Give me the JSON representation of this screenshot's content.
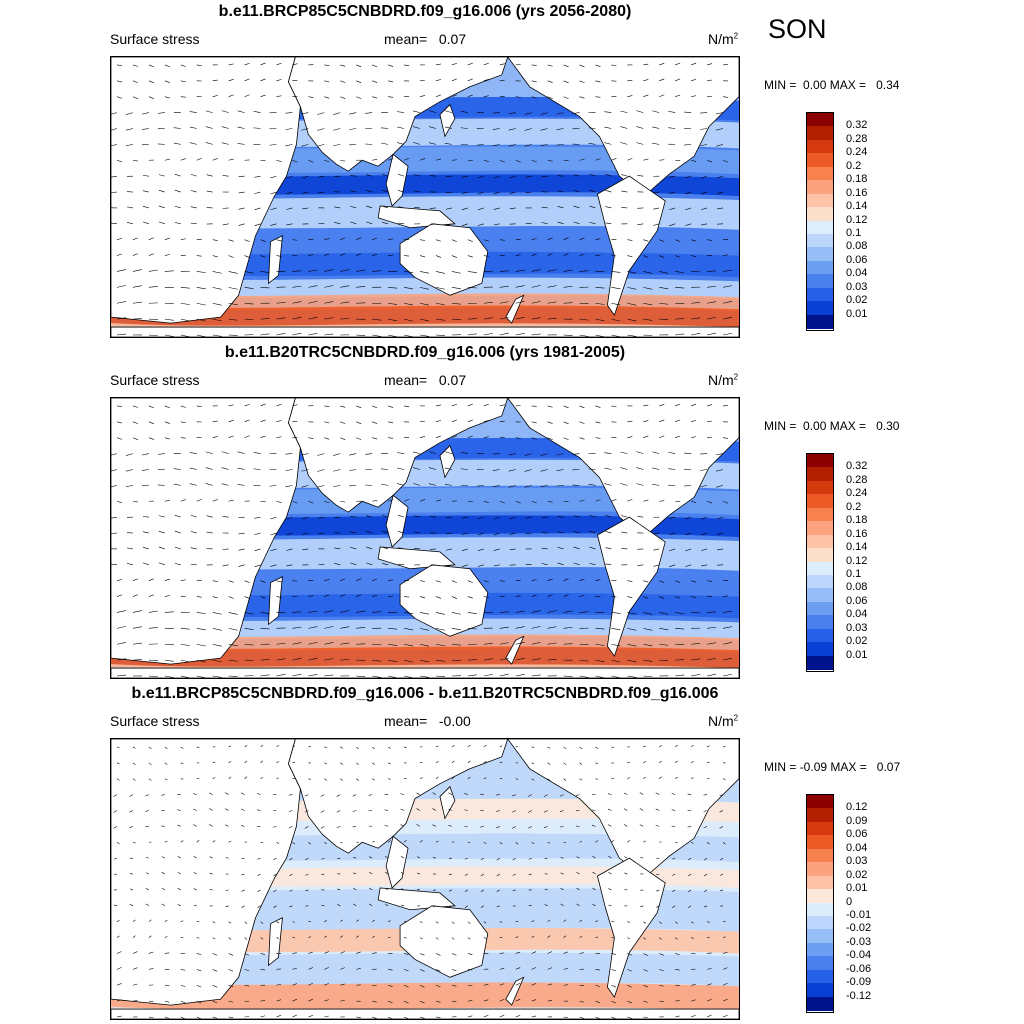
{
  "season": "SON",
  "panels": [
    {
      "title": "b.e11.BRCP85C5CNBDRD.f09_g16.006 (yrs 2056-2080)",
      "variable": "Surface stress",
      "mean_label": "mean=",
      "mean_value": "0.07",
      "units": "N/m",
      "units_exp": "2",
      "min_label": "MIN =",
      "min_value": "0.00",
      "max_label": "MAX =",
      "max_value": "0.34",
      "colorbar_levels": [
        "0.32",
        "0.28",
        "0.24",
        "0.2",
        "0.18",
        "0.16",
        "0.14",
        "0.12",
        "0.1",
        "0.08",
        "0.06",
        "0.04",
        "0.03",
        "0.02",
        "0.01"
      ],
      "colorbar_colors": [
        "#8b0000",
        "#b22000",
        "#d43a0d",
        "#ee5a25",
        "#f7824d",
        "#fba37e",
        "#fdc3a6",
        "#fde0cc",
        "#ddeefc",
        "#bcd7fb",
        "#97bdf7",
        "#6c9ff2",
        "#4a80ee",
        "#2660e8",
        "#0a3fd4",
        "#00138a"
      ]
    },
    {
      "title": "b.e11.B20TRC5CNBDRD.f09_g16.006 (yrs 1981-2005)",
      "variable": "Surface stress",
      "mean_label": "mean=",
      "mean_value": "0.07",
      "units": "N/m",
      "units_exp": "2",
      "min_label": "MIN =",
      "min_value": "0.00",
      "max_label": "MAX =",
      "max_value": "0.30",
      "colorbar_levels": [
        "0.32",
        "0.28",
        "0.24",
        "0.2",
        "0.18",
        "0.16",
        "0.14",
        "0.12",
        "0.1",
        "0.08",
        "0.06",
        "0.04",
        "0.03",
        "0.02",
        "0.01"
      ],
      "colorbar_colors": [
        "#8b0000",
        "#b22000",
        "#d43a0d",
        "#ee5a25",
        "#f7824d",
        "#fba37e",
        "#fdc3a6",
        "#fde0cc",
        "#ddeefc",
        "#bcd7fb",
        "#97bdf7",
        "#6c9ff2",
        "#4a80ee",
        "#2660e8",
        "#0a3fd4",
        "#00138a"
      ]
    },
    {
      "title": "b.e11.BRCP85C5CNBDRD.f09_g16.006 - b.e11.B20TRC5CNBDRD.f09_g16.006",
      "variable": "Surface stress",
      "mean_label": "mean=",
      "mean_value": "-0.00",
      "units": "N/m",
      "units_exp": "2",
      "min_label": "MIN =",
      "min_value": "-0.09",
      "max_label": "MAX =",
      "max_value": "0.07",
      "colorbar_levels": [
        "0.12",
        "0.09",
        "0.06",
        "0.04",
        "0.03",
        "0.02",
        "0.01",
        "0",
        "-0.01",
        "-0.02",
        "-0.03",
        "-0.04",
        "-0.06",
        "-0.09",
        "-0.12"
      ],
      "colorbar_colors": [
        "#8b0000",
        "#b22000",
        "#d43a0d",
        "#ee5a25",
        "#f7824d",
        "#fba37e",
        "#fdc3a6",
        "#fde8da",
        "#dcecfb",
        "#bcd7fb",
        "#97bdf7",
        "#6c9ff2",
        "#4a80ee",
        "#2660e8",
        "#0a3fd4",
        "#00138a"
      ]
    }
  ]
}
